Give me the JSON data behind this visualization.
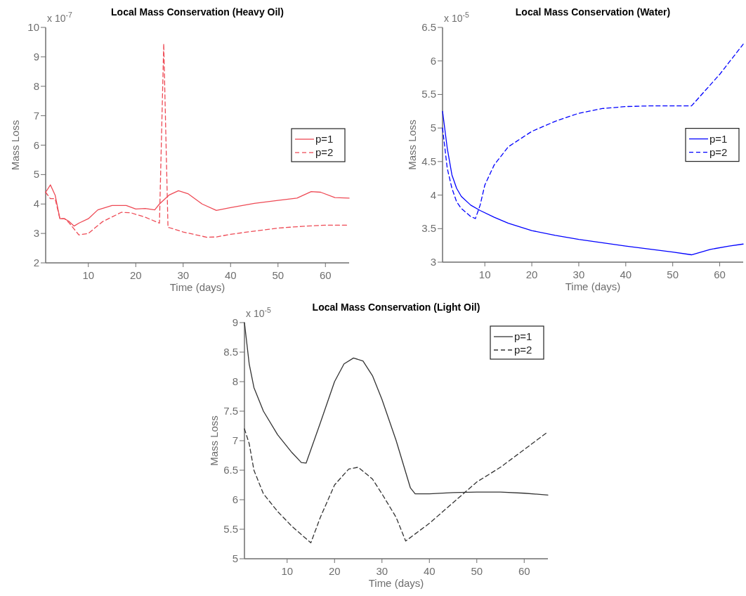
{
  "chart_data": [
    {
      "type": "line",
      "title": "Local Mass Conservation (Heavy Oil)",
      "xlabel": "Time (days)",
      "ylabel": "Mass Loss",
      "annotations": [
        "x 10$^{-7}$"
      ],
      "xlim": [
        1,
        65
      ],
      "xticks": [
        10,
        20,
        30,
        40,
        50,
        60
      ],
      "ylim": [
        2,
        10
      ],
      "yticks": [
        2,
        3,
        4,
        5,
        6,
        7,
        8,
        9,
        10
      ],
      "legend": "right",
      "grid": false,
      "series": [
        {
          "name": "p=1",
          "color": "#ee4a55",
          "line_style": "solid",
          "x": [
            1,
            2,
            3,
            4,
            5,
            6,
            7,
            8,
            10,
            12,
            15,
            18,
            20,
            22,
            24,
            25,
            27,
            29,
            31,
            34,
            37,
            40,
            45,
            50,
            54,
            57,
            59,
            62,
            65
          ],
          "values": [
            4.4,
            4.65,
            4.3,
            3.5,
            3.5,
            3.4,
            3.25,
            3.35,
            3.5,
            3.8,
            3.95,
            3.95,
            3.83,
            3.85,
            3.8,
            4.0,
            4.3,
            4.45,
            4.35,
            4.0,
            3.78,
            3.88,
            4.02,
            4.12,
            4.2,
            4.42,
            4.4,
            4.22,
            4.2
          ]
        },
        {
          "name": "p=2",
          "color": "#ee4a55",
          "line_style": "dashed",
          "x": [
            1,
            2,
            3,
            4,
            5,
            6,
            7,
            8,
            10,
            13,
            17,
            19,
            22,
            25,
            25.9,
            26.8,
            27,
            30,
            35,
            37,
            40,
            45,
            50,
            55,
            60,
            65
          ],
          "values": [
            4.4,
            4.18,
            4.18,
            3.5,
            3.5,
            3.35,
            3.15,
            2.95,
            3.0,
            3.4,
            3.72,
            3.7,
            3.55,
            3.35,
            9.45,
            3.2,
            3.2,
            3.05,
            2.87,
            2.88,
            2.97,
            3.08,
            3.18,
            3.24,
            3.28,
            3.28
          ]
        }
      ]
    },
    {
      "type": "line",
      "title": "Local Mass Conservation (Water)",
      "xlabel": "Time (days)",
      "ylabel": "Mass Loss",
      "annotations": [
        "x 10$^{-5}$"
      ],
      "xlim": [
        1,
        65
      ],
      "xticks": [
        10,
        20,
        30,
        40,
        50,
        60
      ],
      "ylim": [
        3,
        6.5
      ],
      "yticks": [
        3,
        3.5,
        4,
        4.5,
        5,
        5.5,
        6,
        6.5
      ],
      "legend": "right",
      "grid": false,
      "series": [
        {
          "name": "p=1",
          "color": "#0000ff",
          "line_style": "solid",
          "x": [
            1,
            2,
            3,
            4,
            5,
            7,
            9,
            12,
            15,
            20,
            25,
            30,
            40,
            50,
            54,
            58,
            62,
            65
          ],
          "values": [
            5.25,
            4.7,
            4.3,
            4.1,
            3.98,
            3.85,
            3.77,
            3.67,
            3.58,
            3.47,
            3.4,
            3.34,
            3.24,
            3.15,
            3.11,
            3.19,
            3.24,
            3.27
          ]
        },
        {
          "name": "p=2",
          "color": "#0000ff",
          "line_style": "dashed",
          "x": [
            1,
            2,
            3,
            4,
            5,
            7,
            8,
            9,
            10,
            12,
            15,
            20,
            25,
            30,
            35,
            40,
            45,
            54,
            60,
            65
          ],
          "values": [
            5.0,
            4.4,
            4.1,
            3.9,
            3.8,
            3.68,
            3.65,
            3.85,
            4.15,
            4.45,
            4.72,
            4.95,
            5.1,
            5.22,
            5.29,
            5.32,
            5.33,
            5.33,
            5.8,
            6.25
          ]
        }
      ]
    },
    {
      "type": "line",
      "title": "Local Mass Conservation (Light Oil)",
      "xlabel": "Time (days)",
      "ylabel": "Mass Loss",
      "annotations": [
        "x 10$^{-5}$"
      ],
      "xlim": [
        1,
        65
      ],
      "xticks": [
        10,
        20,
        30,
        40,
        50,
        60
      ],
      "ylim": [
        5,
        9
      ],
      "yticks": [
        5,
        5.5,
        6,
        6.5,
        7,
        7.5,
        8,
        8.5,
        9
      ],
      "legend": "top right",
      "grid": false,
      "series": [
        {
          "name": "p=1",
          "color": "#333333",
          "line_style": "solid",
          "x": [
            1,
            2,
            3,
            5,
            8,
            11,
            13,
            14,
            17,
            20,
            22,
            24,
            26,
            28,
            30,
            33,
            36,
            37,
            40,
            45,
            50,
            55,
            60,
            65
          ],
          "values": [
            9.0,
            8.3,
            7.9,
            7.5,
            7.1,
            6.8,
            6.63,
            6.62,
            7.3,
            8.0,
            8.3,
            8.4,
            8.35,
            8.1,
            7.7,
            7.0,
            6.2,
            6.1,
            6.1,
            6.12,
            6.13,
            6.13,
            6.11,
            6.08
          ]
        },
        {
          "name": "p=2",
          "color": "#333333",
          "line_style": "dashed",
          "x": [
            1,
            2,
            3,
            5,
            8,
            11,
            15,
            17,
            20,
            23,
            25,
            28,
            30,
            33,
            35,
            40,
            45,
            50,
            55,
            60,
            65
          ],
          "values": [
            7.2,
            6.95,
            6.5,
            6.1,
            5.8,
            5.55,
            5.27,
            5.7,
            6.25,
            6.52,
            6.55,
            6.35,
            6.1,
            5.7,
            5.3,
            5.6,
            5.95,
            6.3,
            6.55,
            6.85,
            7.15
          ]
        }
      ]
    }
  ]
}
